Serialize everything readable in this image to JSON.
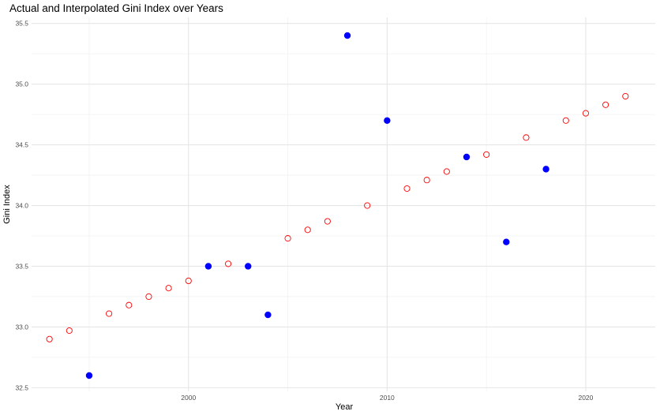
{
  "chart_data": {
    "type": "scatter",
    "title": "Actual and Interpolated Gini Index over Years",
    "xlabel": "Year",
    "ylabel": "Gini Index",
    "xlim": [
      1992.1,
      2023.5
    ],
    "ylim": [
      32.47,
      35.55
    ],
    "x_ticks": [
      2000,
      2010,
      2020
    ],
    "y_ticks": [
      32.5,
      33.0,
      33.5,
      34.0,
      34.5,
      35.0,
      35.5
    ],
    "grid": true,
    "legend": "none",
    "series": [
      {
        "marker": "filled-circle",
        "color": "#0000ff",
        "points": [
          {
            "x": 1995,
            "y": 32.6
          },
          {
            "x": 2001,
            "y": 33.5
          },
          {
            "x": 2003,
            "y": 33.5
          },
          {
            "x": 2004,
            "y": 33.1
          },
          {
            "x": 2008,
            "y": 35.4
          },
          {
            "x": 2010,
            "y": 34.7
          },
          {
            "x": 2014,
            "y": 34.4
          },
          {
            "x": 2016,
            "y": 33.7
          },
          {
            "x": 2018,
            "y": 34.3
          }
        ]
      },
      {
        "marker": "hollow-circle",
        "color": "#ff0000",
        "points": [
          {
            "x": 1993,
            "y": 32.9
          },
          {
            "x": 1994,
            "y": 32.97
          },
          {
            "x": 1996,
            "y": 33.11
          },
          {
            "x": 1997,
            "y": 33.18
          },
          {
            "x": 1998,
            "y": 33.25
          },
          {
            "x": 1999,
            "y": 33.32
          },
          {
            "x": 2000,
            "y": 33.38
          },
          {
            "x": 2002,
            "y": 33.52
          },
          {
            "x": 2005,
            "y": 33.73
          },
          {
            "x": 2006,
            "y": 33.8
          },
          {
            "x": 2007,
            "y": 33.87
          },
          {
            "x": 2009,
            "y": 34.0
          },
          {
            "x": 2011,
            "y": 34.14
          },
          {
            "x": 2012,
            "y": 34.21
          },
          {
            "x": 2013,
            "y": 34.28
          },
          {
            "x": 2015,
            "y": 34.42
          },
          {
            "x": 2017,
            "y": 34.56
          },
          {
            "x": 2019,
            "y": 34.7
          },
          {
            "x": 2020,
            "y": 34.76
          },
          {
            "x": 2021,
            "y": 34.83
          },
          {
            "x": 2022,
            "y": 34.9
          }
        ]
      }
    ]
  }
}
